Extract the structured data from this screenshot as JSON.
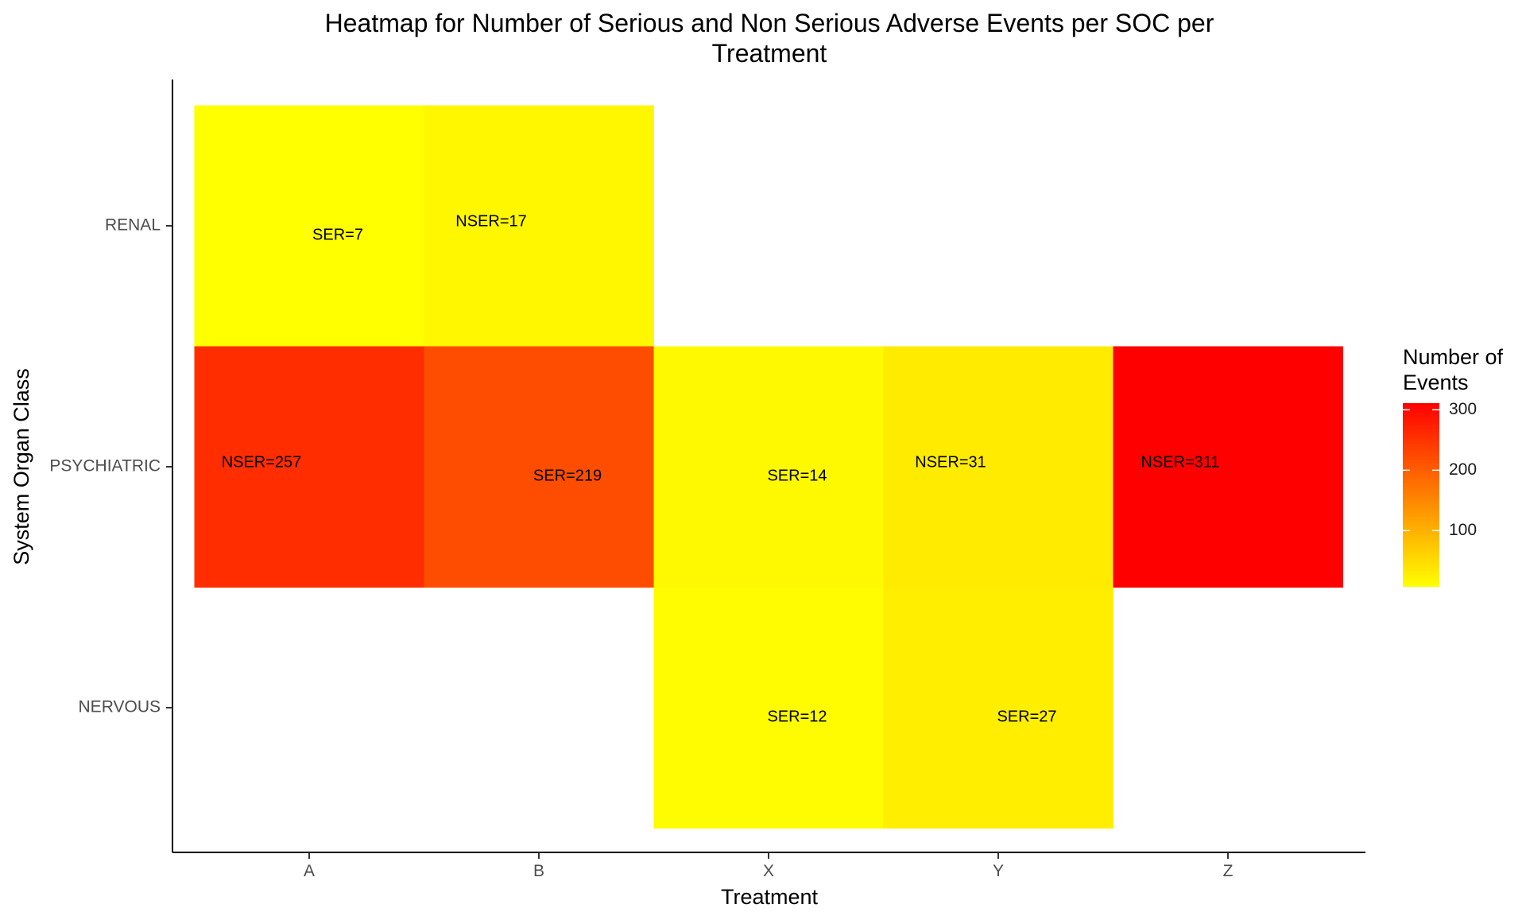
{
  "chart_data": {
    "type": "heatmap",
    "title_lines": [
      "Heatmap for Number of Serious and Non Serious Adverse Events per SOC per",
      "Treatment"
    ],
    "xlabel": "Treatment",
    "ylabel": "System Organ Class",
    "x_categories": [
      "A",
      "B",
      "X",
      "Y",
      "Z"
    ],
    "y_categories": [
      "NERVOUS",
      "PSYCHIATRIC",
      "RENAL"
    ],
    "cells": [
      {
        "x": "A",
        "y": "RENAL",
        "value": 7,
        "label": "SER=7"
      },
      {
        "x": "B",
        "y": "RENAL",
        "value": 17,
        "label": "NSER=17"
      },
      {
        "x": "A",
        "y": "PSYCHIATRIC",
        "value": 257,
        "label": "NSER=257"
      },
      {
        "x": "B",
        "y": "PSYCHIATRIC",
        "value": 219,
        "label": "SER=219"
      },
      {
        "x": "X",
        "y": "PSYCHIATRIC",
        "value": 14,
        "label": "SER=14"
      },
      {
        "x": "Y",
        "y": "PSYCHIATRIC",
        "value": 31,
        "label": "NSER=31"
      },
      {
        "x": "Z",
        "y": "PSYCHIATRIC",
        "value": 311,
        "label": "NSER=311"
      },
      {
        "x": "X",
        "y": "NERVOUS",
        "value": 12,
        "label": "SER=12"
      },
      {
        "x": "Y",
        "y": "NERVOUS",
        "value": 27,
        "label": "SER=27"
      }
    ],
    "legend": {
      "title_lines": [
        "Number of",
        "Events"
      ],
      "ticks": [
        100,
        200,
        300
      ],
      "range": [
        7,
        311
      ],
      "low_color": "#FFFF00",
      "high_color": "#FF0000",
      "placement": "right"
    },
    "grid": false
  }
}
